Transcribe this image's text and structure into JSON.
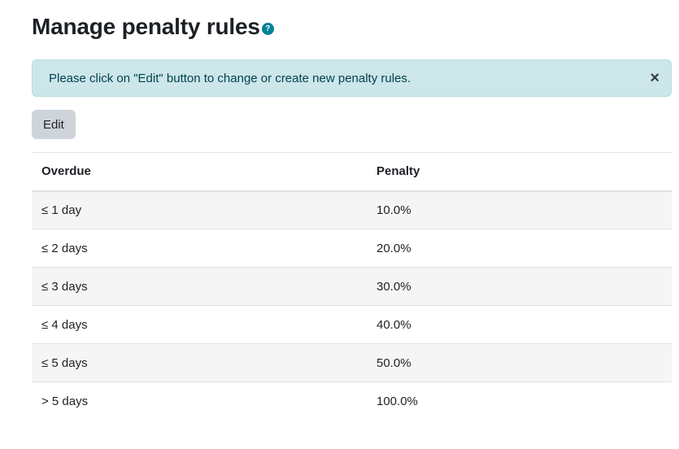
{
  "page": {
    "title": "Manage penalty rules",
    "help_icon_glyph": "?"
  },
  "alert": {
    "message": "Please click on \"Edit\" button to change or create new penalty rules.",
    "close_glyph": "×"
  },
  "toolbar": {
    "edit_label": "Edit"
  },
  "table": {
    "headers": {
      "overdue": "Overdue",
      "penalty": "Penalty"
    },
    "rows": [
      {
        "overdue": "≤ 1 day",
        "penalty": "10.0%"
      },
      {
        "overdue": "≤ 2 days",
        "penalty": "20.0%"
      },
      {
        "overdue": "≤ 3 days",
        "penalty": "30.0%"
      },
      {
        "overdue": "≤ 4 days",
        "penalty": "40.0%"
      },
      {
        "overdue": "≤ 5 days",
        "penalty": "50.0%"
      },
      {
        "overdue": "> 5 days",
        "penalty": "100.0%"
      }
    ]
  },
  "colors": {
    "alert_background": "#cce6ea",
    "alert_text": "#00434e",
    "help_icon": "#008196",
    "button_background": "#ced4da",
    "striped_row": "#f5f5f5"
  }
}
